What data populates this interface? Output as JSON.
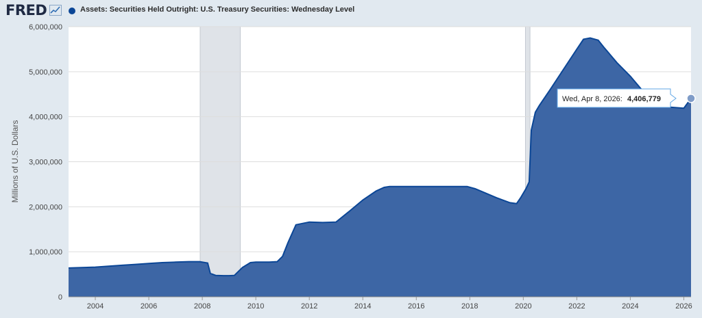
{
  "header": {
    "logo": "FRED",
    "logo_icon": "line-chart-icon",
    "title": "Assets: Securities Held Outright: U.S. Treasury Securities: Wednesday Level"
  },
  "tooltip": {
    "date": "Wed, Apr 8, 2026:",
    "value": "4,406,779"
  },
  "colors": {
    "series": "#0b4696",
    "fill": "#3d66a5",
    "recession": "#dfe3e8",
    "background": "#e1e9f0",
    "plot": "#ffffff"
  },
  "chart_data": {
    "type": "area",
    "title": "Assets: Securities Held Outright: U.S. Treasury Securities: Wednesday Level",
    "ylabel": "Millions of U.S. Dollars",
    "xlabel": "",
    "xlim": [
      2003.0,
      2026.27
    ],
    "ylim": [
      0,
      6000000
    ],
    "yticks": [
      "0",
      "1,000,000",
      "2,000,000",
      "3,000,000",
      "4,000,000",
      "5,000,000",
      "6,000,000"
    ],
    "xticks": [
      "2004",
      "2006",
      "2008",
      "2010",
      "2012",
      "2014",
      "2016",
      "2018",
      "2020",
      "2022",
      "2024",
      "2026"
    ],
    "grid": true,
    "recessions": [
      [
        2007.92,
        2009.42
      ],
      [
        2020.08,
        2020.25
      ]
    ],
    "series": [
      {
        "x": [
          2003.0,
          2003.5,
          2004.0,
          2004.5,
          2005.0,
          2005.5,
          2006.0,
          2006.5,
          2007.0,
          2007.5,
          2007.9,
          2008.2,
          2008.3,
          2008.5,
          2008.8,
          2009.0,
          2009.2,
          2009.5,
          2009.8,
          2010.0,
          2010.5,
          2010.8,
          2011.0,
          2011.2,
          2011.5,
          2012.0,
          2012.5,
          2013.0,
          2013.5,
          2014.0,
          2014.5,
          2014.8,
          2015.0,
          2016.0,
          2017.0,
          2017.9,
          2018.2,
          2018.6,
          2019.0,
          2019.5,
          2019.75,
          2019.9,
          2020.1,
          2020.22,
          2020.3,
          2020.45,
          2020.6,
          2021.0,
          2021.5,
          2022.0,
          2022.25,
          2022.5,
          2022.8,
          2023.0,
          2023.5,
          2024.0,
          2024.5,
          2025.0,
          2025.5,
          2026.0,
          2026.27
        ],
        "y": [
          640000,
          650000,
          660000,
          680000,
          700000,
          720000,
          740000,
          760000,
          770000,
          780000,
          780000,
          750000,
          520000,
          475000,
          470000,
          470000,
          475000,
          650000,
          760000,
          770000,
          770000,
          780000,
          900000,
          1200000,
          1600000,
          1660000,
          1650000,
          1660000,
          1900000,
          2150000,
          2350000,
          2430000,
          2450000,
          2450000,
          2450000,
          2450000,
          2400000,
          2300000,
          2200000,
          2090000,
          2070000,
          2200000,
          2400000,
          2550000,
          3700000,
          4100000,
          4250000,
          4600000,
          5050000,
          5500000,
          5720000,
          5750000,
          5700000,
          5550000,
          5200000,
          4900000,
          4550000,
          4300000,
          4210000,
          4190000,
          4406779
        ]
      }
    ]
  }
}
